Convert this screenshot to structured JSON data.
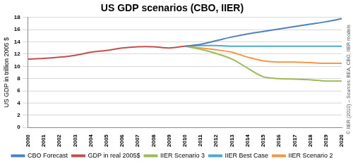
{
  "chart_data": {
    "type": "line",
    "title": "US GDP scenarios (CBO, IIER)",
    "y_label": "US GDP in trillion 2005 $",
    "annotation": "© IIER (2010) – Sources: BEA, CBO, IIER models",
    "categories": [
      "2000",
      "2001",
      "2002",
      "2003",
      "2004",
      "2005",
      "2006",
      "2007",
      "2008",
      "2009",
      "2010",
      "2011",
      "2012",
      "2013",
      "2014",
      "2015",
      "2016",
      "2017",
      "2018",
      "2019",
      "2020"
    ],
    "series": [
      {
        "name": "CBO Forecast",
        "color": "#4f81bd",
        "values": [
          null,
          null,
          null,
          null,
          null,
          null,
          null,
          null,
          null,
          null,
          13.3,
          13.6,
          14.2,
          14.8,
          15.3,
          15.7,
          16.1,
          16.5,
          16.9,
          17.3,
          17.8
        ]
      },
      {
        "name": "GDP in real 2005$",
        "color": "#c0504d",
        "values": [
          11.2,
          11.3,
          11.5,
          11.8,
          12.3,
          12.6,
          13.0,
          13.2,
          13.2,
          13.0,
          13.3,
          null,
          null,
          null,
          null,
          null,
          null,
          null,
          null,
          null,
          null
        ]
      },
      {
        "name": "IIER Scenario 3",
        "color": "#9bbb59",
        "values": [
          null,
          null,
          null,
          null,
          null,
          null,
          null,
          null,
          null,
          null,
          13.3,
          12.8,
          12.1,
          11.2,
          9.7,
          8.3,
          8.0,
          7.9,
          7.8,
          7.6,
          7.6
        ]
      },
      {
        "name": "IIER Best Case",
        "color": "#4bacc6",
        "values": [
          null,
          null,
          null,
          null,
          null,
          null,
          null,
          null,
          null,
          null,
          13.3,
          13.4,
          13.4,
          13.3,
          13.3,
          13.3,
          13.3,
          13.3,
          13.3,
          13.3,
          13.3
        ]
      },
      {
        "name": "IIER Scenario 2",
        "color": "#f79646",
        "values": [
          null,
          null,
          null,
          null,
          null,
          null,
          null,
          null,
          null,
          null,
          13.3,
          13.0,
          12.7,
          12.3,
          11.5,
          10.9,
          10.7,
          10.7,
          10.6,
          10.5,
          10.5
        ]
      }
    ],
    "ylim": [
      0,
      18
    ],
    "yticks": [
      0,
      2,
      4,
      6,
      8,
      10,
      12,
      14,
      16,
      18
    ],
    "grid": true,
    "legend": "bottom"
  }
}
